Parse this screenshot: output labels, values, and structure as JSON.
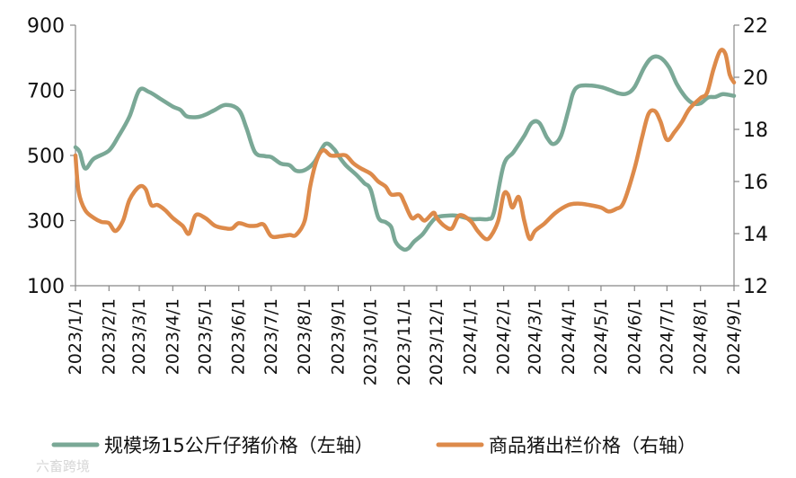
{
  "chart_data": {
    "type": "line",
    "title": "",
    "x": [
      "2023/1/1",
      "2023/2/1",
      "2023/3/1",
      "2023/4/1",
      "2023/5/1",
      "2023/6/1",
      "2023/7/1",
      "2023/8/1",
      "2023/9/1",
      "2023/10/1",
      "2023/11/1",
      "2023/12/1",
      "2024/1/1",
      "2024/2/1",
      "2024/3/1",
      "2024/4/1",
      "2024/5/1",
      "2024/6/1",
      "2024/7/1",
      "2024/8/1",
      "2024/9/1"
    ],
    "y_left": {
      "ylim": [
        100,
        900
      ],
      "ticks": [
        "100",
        "300",
        "500",
        "700",
        "900"
      ]
    },
    "y_right": {
      "ylim": [
        12,
        22
      ],
      "ticks": [
        "12",
        "14",
        "16",
        "18",
        "20",
        "22"
      ]
    },
    "legend_position": "bottom",
    "grid": false,
    "series": [
      {
        "name": "规模场15公斤仔猪价格（左轴）",
        "axis": "left",
        "color": "#7aa896",
        "points": [
          [
            "2023/1/1",
            525
          ],
          [
            "2023/1/5",
            510
          ],
          [
            "2023/1/10",
            460
          ],
          [
            "2023/1/18",
            490
          ],
          [
            "2023/2/1",
            515
          ],
          [
            "2023/2/10",
            560
          ],
          [
            "2023/2/20",
            620
          ],
          [
            "2023/3/1",
            700
          ],
          [
            "2023/3/10",
            695
          ],
          [
            "2023/3/20",
            675
          ],
          [
            "2023/4/1",
            650
          ],
          [
            "2023/4/8",
            640
          ],
          [
            "2023/4/14",
            620
          ],
          [
            "2023/4/24",
            618
          ],
          [
            "2023/5/1",
            625
          ],
          [
            "2023/5/10",
            640
          ],
          [
            "2023/5/20",
            655
          ],
          [
            "2023/6/1",
            640
          ],
          [
            "2023/6/8",
            585
          ],
          [
            "2023/6/16",
            510
          ],
          [
            "2023/6/25",
            498
          ],
          [
            "2023/7/1",
            495
          ],
          [
            "2023/7/10",
            475
          ],
          [
            "2023/7/18",
            470
          ],
          [
            "2023/7/24",
            453
          ],
          [
            "2023/8/1",
            455
          ],
          [
            "2023/8/10",
            480
          ],
          [
            "2023/8/20",
            535
          ],
          [
            "2023/8/28",
            520
          ],
          [
            "2023/9/1",
            500
          ],
          [
            "2023/9/8",
            470
          ],
          [
            "2023/9/18",
            440
          ],
          [
            "2023/9/25",
            415
          ],
          [
            "2023/10/1",
            395
          ],
          [
            "2023/10/8",
            310
          ],
          [
            "2023/10/15",
            295
          ],
          [
            "2023/10/20",
            280
          ],
          [
            "2023/10/24",
            235
          ],
          [
            "2023/10/31",
            212
          ],
          [
            "2023/11/5",
            215
          ],
          [
            "2023/11/10",
            235
          ],
          [
            "2023/11/18",
            258
          ],
          [
            "2023/11/25",
            290
          ],
          [
            "2023/12/1",
            310
          ],
          [
            "2023/12/10",
            315
          ],
          [
            "2023/12/20",
            315
          ],
          [
            "2024/1/1",
            305
          ],
          [
            "2024/1/10",
            305
          ],
          [
            "2024/1/18",
            305
          ],
          [
            "2024/1/23",
            325
          ],
          [
            "2024/2/1",
            470
          ],
          [
            "2024/2/10",
            510
          ],
          [
            "2024/2/20",
            560
          ],
          [
            "2024/2/27",
            600
          ],
          [
            "2024/3/5",
            600
          ],
          [
            "2024/3/12",
            555
          ],
          [
            "2024/3/18",
            535
          ],
          [
            "2024/3/25",
            560
          ],
          [
            "2024/4/1",
            640
          ],
          [
            "2024/4/5",
            690
          ],
          [
            "2024/4/10",
            712
          ],
          [
            "2024/4/20",
            715
          ],
          [
            "2024/5/1",
            710
          ],
          [
            "2024/5/10",
            700
          ],
          [
            "2024/5/18",
            690
          ],
          [
            "2024/5/25",
            690
          ],
          [
            "2024/6/1",
            710
          ],
          [
            "2024/6/10",
            770
          ],
          [
            "2024/6/17",
            800
          ],
          [
            "2024/6/25",
            800
          ],
          [
            "2024/7/3",
            770
          ],
          [
            "2024/7/10",
            720
          ],
          [
            "2024/7/18",
            680
          ],
          [
            "2024/7/25",
            660
          ],
          [
            "2024/8/1",
            660
          ],
          [
            "2024/8/8",
            678
          ],
          [
            "2024/8/15",
            680
          ],
          [
            "2024/8/22",
            688
          ],
          [
            "2024/9/1",
            683
          ]
        ]
      },
      {
        "name": "商品猪出栏价格（右轴）",
        "axis": "right",
        "color": "#dd8a4a",
        "points": [
          [
            "2023/1/1",
            17.0
          ],
          [
            "2023/1/4",
            15.6
          ],
          [
            "2023/1/10",
            14.9
          ],
          [
            "2023/1/18",
            14.6
          ],
          [
            "2023/1/25",
            14.45
          ],
          [
            "2023/2/1",
            14.4
          ],
          [
            "2023/2/7",
            14.1
          ],
          [
            "2023/2/14",
            14.5
          ],
          [
            "2023/2/20",
            15.3
          ],
          [
            "2023/3/1",
            15.8
          ],
          [
            "2023/3/7",
            15.7
          ],
          [
            "2023/3/12",
            15.1
          ],
          [
            "2023/3/18",
            15.1
          ],
          [
            "2023/3/25",
            14.9
          ],
          [
            "2023/4/1",
            14.6
          ],
          [
            "2023/4/10",
            14.3
          ],
          [
            "2023/4/16",
            14.0
          ],
          [
            "2023/4/22",
            14.7
          ],
          [
            "2023/5/1",
            14.6
          ],
          [
            "2023/5/10",
            14.3
          ],
          [
            "2023/5/20",
            14.2
          ],
          [
            "2023/5/26",
            14.2
          ],
          [
            "2023/6/1",
            14.4
          ],
          [
            "2023/6/10",
            14.3
          ],
          [
            "2023/6/17",
            14.3
          ],
          [
            "2023/6/24",
            14.35
          ],
          [
            "2023/7/1",
            13.9
          ],
          [
            "2023/7/10",
            13.9
          ],
          [
            "2023/7/18",
            13.95
          ],
          [
            "2023/7/24",
            13.95
          ],
          [
            "2023/8/1",
            14.5
          ],
          [
            "2023/8/6",
            15.8
          ],
          [
            "2023/8/12",
            16.8
          ],
          [
            "2023/8/18",
            17.2
          ],
          [
            "2023/8/25",
            17.0
          ],
          [
            "2023/9/1",
            17.0
          ],
          [
            "2023/9/8",
            17.0
          ],
          [
            "2023/9/15",
            16.7
          ],
          [
            "2023/9/22",
            16.5
          ],
          [
            "2023/10/1",
            16.3
          ],
          [
            "2023/10/8",
            16.0
          ],
          [
            "2023/10/15",
            15.8
          ],
          [
            "2023/10/20",
            15.5
          ],
          [
            "2023/10/28",
            15.5
          ],
          [
            "2023/11/1",
            15.2
          ],
          [
            "2023/11/8",
            14.6
          ],
          [
            "2023/11/14",
            14.7
          ],
          [
            "2023/11/20",
            14.5
          ],
          [
            "2023/11/28",
            14.8
          ],
          [
            "2023/12/1",
            14.6
          ],
          [
            "2023/12/8",
            14.3
          ],
          [
            "2023/12/15",
            14.2
          ],
          [
            "2023/12/22",
            14.7
          ],
          [
            "2024/1/1",
            14.5
          ],
          [
            "2024/1/8",
            14.1
          ],
          [
            "2024/1/15",
            13.8
          ],
          [
            "2024/1/20",
            13.9
          ],
          [
            "2024/1/27",
            14.5
          ],
          [
            "2024/2/1",
            15.5
          ],
          [
            "2024/2/5",
            15.5
          ],
          [
            "2024/2/9",
            15.0
          ],
          [
            "2024/2/15",
            15.4
          ],
          [
            "2024/2/20",
            14.5
          ],
          [
            "2024/2/25",
            13.8
          ],
          [
            "2024/3/1",
            14.1
          ],
          [
            "2024/3/10",
            14.4
          ],
          [
            "2024/3/20",
            14.8
          ],
          [
            "2024/4/1",
            15.1
          ],
          [
            "2024/4/10",
            15.15
          ],
          [
            "2024/4/20",
            15.1
          ],
          [
            "2024/5/1",
            15.0
          ],
          [
            "2024/5/8",
            14.85
          ],
          [
            "2024/5/15",
            14.95
          ],
          [
            "2024/5/22",
            15.2
          ],
          [
            "2024/6/1",
            16.5
          ],
          [
            "2024/6/8",
            17.7
          ],
          [
            "2024/6/14",
            18.6
          ],
          [
            "2024/6/20",
            18.7
          ],
          [
            "2024/6/25",
            18.3
          ],
          [
            "2024/7/1",
            17.6
          ],
          [
            "2024/7/8",
            17.9
          ],
          [
            "2024/7/15",
            18.3
          ],
          [
            "2024/7/22",
            18.8
          ],
          [
            "2024/8/1",
            19.2
          ],
          [
            "2024/8/7",
            19.4
          ],
          [
            "2024/8/13",
            20.3
          ],
          [
            "2024/8/19",
            21.0
          ],
          [
            "2024/8/24",
            20.9
          ],
          [
            "2024/8/28",
            20.1
          ],
          [
            "2024/9/1",
            19.8
          ]
        ]
      }
    ]
  },
  "watermark": "六畜跨境"
}
